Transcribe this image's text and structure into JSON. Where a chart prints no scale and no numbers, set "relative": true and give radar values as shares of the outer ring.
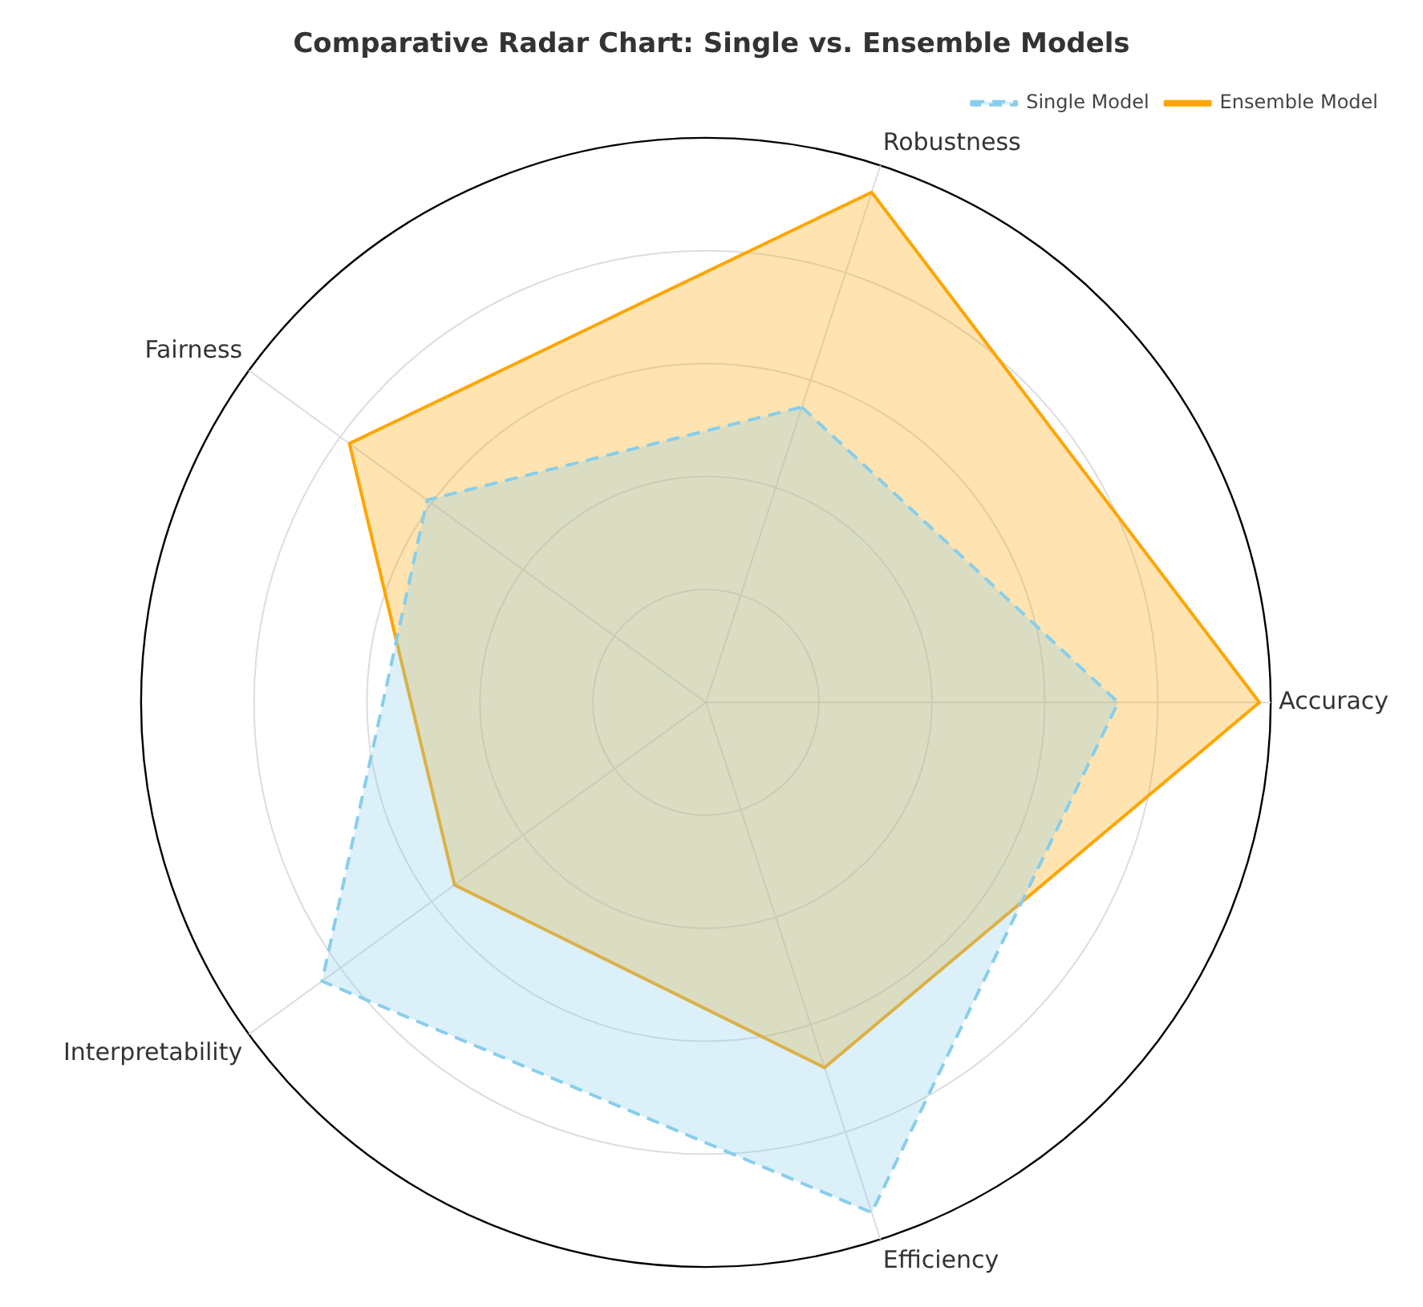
{
  "chart_data": {
    "type": "radar",
    "title": "Comparative Radar Chart: Single vs. Ensemble Models",
    "categories": [
      "Robustness",
      "Accuracy",
      "Efficiency",
      "Interpretability",
      "Fairness"
    ],
    "relative": true,
    "grid": true,
    "legend": "top right",
    "marker": "none",
    "series": [
      {
        "name": "Single Model",
        "color": "#87ceeb",
        "line_style": "dashed",
        "values": [
          0.55,
          0.73,
          0.95,
          0.84,
          0.61
        ]
      },
      {
        "name": "Ensemble Model",
        "color": "#ffa500",
        "line_style": "solid",
        "values": [
          0.95,
          0.98,
          0.68,
          0.55,
          0.78
        ]
      }
    ]
  }
}
